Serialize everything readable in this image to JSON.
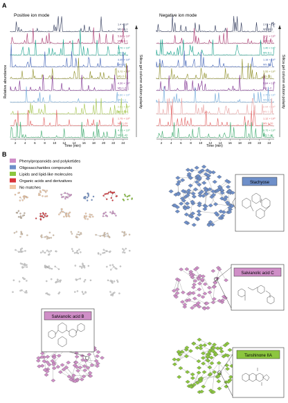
{
  "panel_a": {
    "label": "A",
    "positive": {
      "title": "Positive ion mode",
      "ylabel": "Relative abundance",
      "right_label": "Silica gel column elution polarity",
      "xlabel": "Time (min)",
      "ticks": [
        "2",
        "4",
        "6",
        "8",
        "10",
        "12",
        "14",
        "16",
        "18",
        "20",
        "22",
        "24"
      ],
      "traces": [
        {
          "name": "MS 40-1",
          "intensity": "1.4 × 10⁸",
          "color": "#2c3557"
        },
        {
          "name": "MS 10-1",
          "intensity": "5.84 × 10⁸",
          "color": "#a8326b"
        },
        {
          "name": "MS 6-1",
          "intensity": "4.70 × 10⁸",
          "color": "#14a08a"
        },
        {
          "name": "MS 3-1",
          "intensity": "3.35 × 10⁸",
          "color": "#3d5fb5"
        },
        {
          "name": "MS 2-1",
          "intensity": "5.72 × 10⁸",
          "color": "#8c8c24"
        },
        {
          "name": "MS 1-2",
          "intensity": "4.30 × 10⁸",
          "color": "#7a2a8c"
        },
        {
          "name": "MS 1-1",
          "intensity": "3.60 × 10⁸",
          "color": "#6aa5d8"
        },
        {
          "name": "MS 1-40",
          "intensity": "2.61 × 10⁸",
          "color": "#a2c448"
        },
        {
          "name": "MS 1-20",
          "intensity": "1.75 × 10⁸",
          "color": "#e25d5d"
        },
        {
          "name": "MS 1-40",
          "intensity": "4.75 × 10⁸",
          "color": "#3aa86b"
        }
      ]
    },
    "negative": {
      "title": "Negative ion mode",
      "right_label": "Silica gel column elution polarity",
      "xlabel": "Time (min)",
      "ticks": [
        "2",
        "4",
        "6",
        "8",
        "10",
        "12",
        "14",
        "16",
        "18",
        "20",
        "22",
        "24"
      ],
      "traces": [
        {
          "name": "MS 40-1",
          "intensity": "2.03 × 10⁸",
          "color": "#2c3557"
        },
        {
          "name": "MS 10-1",
          "intensity": "1.41 × 10⁸",
          "color": "#a8326b"
        },
        {
          "name": "MS 6-1",
          "intensity": "1.40 × 10⁸",
          "color": "#14a08a"
        },
        {
          "name": "MS 3-1",
          "intensity": "1.18 × 10⁸",
          "color": "#3d5fb5"
        },
        {
          "name": "MS 1-1",
          "intensity": "5.55 × 10⁸",
          "color": "#8c8c24"
        },
        {
          "name": "MS 1-2",
          "intensity": "5.84 × 10⁸",
          "color": "#7a2a8c"
        },
        {
          "name": "MS 1-5",
          "intensity": "2.75 × 10⁸",
          "color": "#6aa5d8"
        },
        {
          "name": "MS 1-10",
          "intensity": "2.94 × 10⁸",
          "color": "#e8a0a0"
        },
        {
          "name": "MS 1-20",
          "intensity": "1.12 × 10⁸",
          "color": "#e25d5d"
        },
        {
          "name": "MS 1-40",
          "intensity": "6.75 × 10⁸",
          "color": "#3aa86b"
        }
      ]
    }
  },
  "panel_b": {
    "label": "B",
    "legend": [
      {
        "label": "Phenylpropanoids and polyketides",
        "color": "#cf8ec7"
      },
      {
        "label": "Oligosaccharides compounds",
        "color": "#6e8fc9"
      },
      {
        "label": "Lipids and lipid-like molecules",
        "color": "#8cc63f"
      },
      {
        "label": "Organic acids and derivatives",
        "color": "#d9343a"
      },
      {
        "label": "No matches",
        "color": "#f2c9a6"
      }
    ],
    "callouts": [
      {
        "label": "Stachyose",
        "color": "#6e8fc9"
      },
      {
        "label": "Salvianolic acid C",
        "color": "#cf8ec7"
      },
      {
        "label": "Salvianolic acid B",
        "color": "#cf8ec7"
      },
      {
        "label": "Tanshinone IIA",
        "color": "#8cc63f"
      }
    ]
  }
}
